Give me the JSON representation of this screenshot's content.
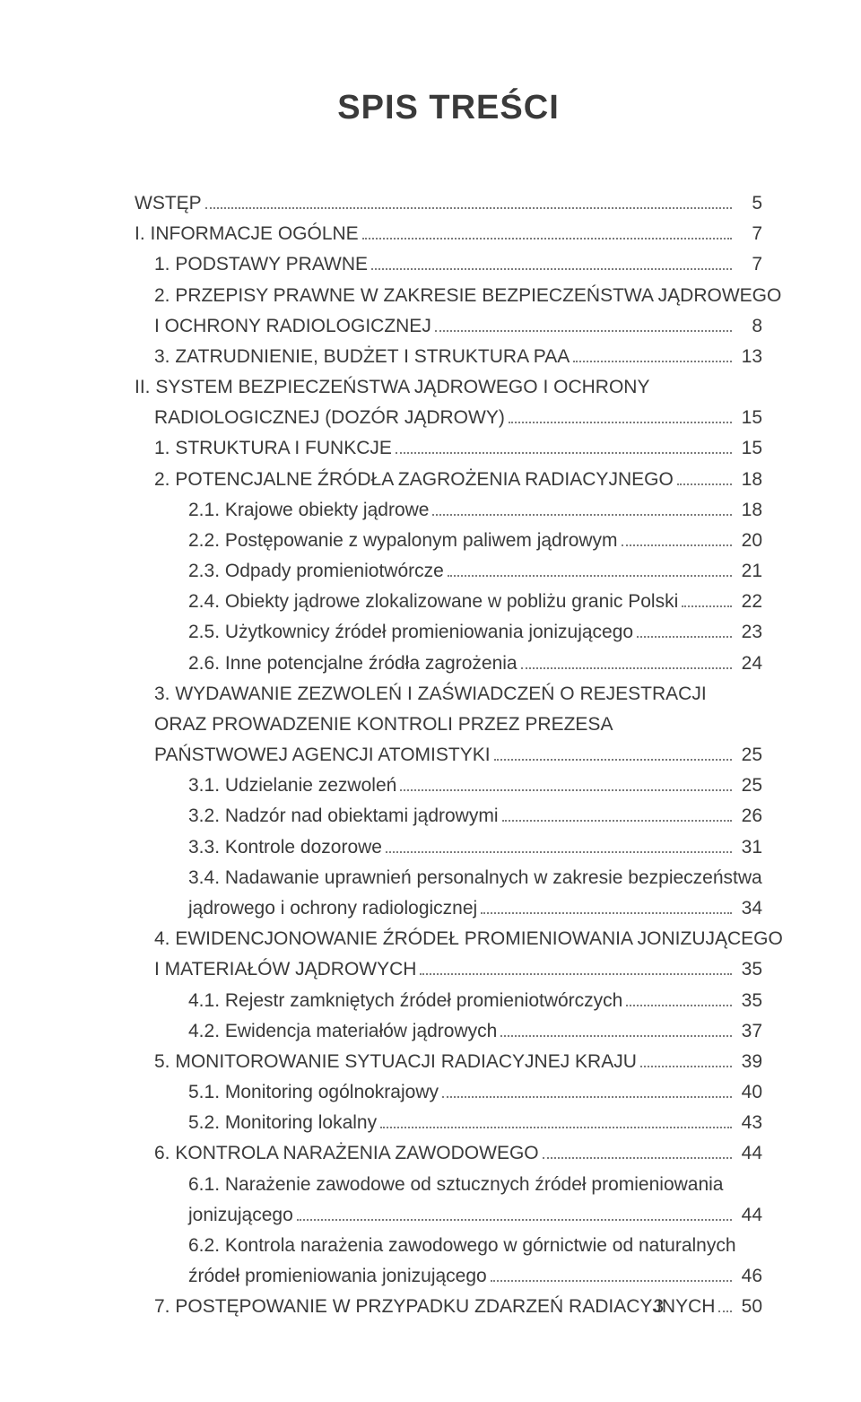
{
  "title": "SPIS TREŚCI",
  "page_number": "3",
  "colors": {
    "text": "#3a3a3a",
    "dots": "#7a7a7a",
    "background": "#ffffff"
  },
  "typography": {
    "title_fontsize_pt": 28,
    "body_fontsize_pt": 16,
    "title_weight": "bold",
    "font_family": "Arial"
  },
  "entries": [
    {
      "level": 0,
      "text": "WSTĘP",
      "page": "5"
    },
    {
      "level": 0,
      "text": "I. INFORMACJE OGÓLNE",
      "page": "7"
    },
    {
      "level": 1,
      "text": "1. PODSTAWY PRAWNE",
      "page": "7"
    },
    {
      "level": 1,
      "text": "2. PRZEPISY PRAWNE W ZAKRESIE BEZPIECZEŃSTWA JĄDROWEGO",
      "cont": "I OCHRONY RADIOLOGICZNEJ",
      "page": "8",
      "contIndent": "cont1"
    },
    {
      "level": 1,
      "text": "3. ZATRUDNIENIE, BUDŻET I STRUKTURA PAA",
      "page": "13"
    },
    {
      "level": 0,
      "text": "II. SYSTEM BEZPIECZEŃSTWA JĄDROWEGO I OCHRONY",
      "cont": "RADIOLOGICZNEJ (DOZÓR JĄDROWY)",
      "page": "15",
      "contIndent": "cont1"
    },
    {
      "level": 1,
      "text": "1. STRUKTURA I FUNKCJE",
      "page": "15"
    },
    {
      "level": 1,
      "text": "2. POTENCJALNE ŹRÓDŁA ZAGROŻENIA RADIACYJNEGO",
      "page": "18"
    },
    {
      "level": 2,
      "text": "2.1. Krajowe obiekty jądrowe",
      "page": "18"
    },
    {
      "level": 2,
      "text": "2.2. Postępowanie z wypalonym paliwem jądrowym",
      "page": "20"
    },
    {
      "level": 2,
      "text": "2.3. Odpady promieniotwórcze",
      "page": "21"
    },
    {
      "level": 2,
      "text": "2.4. Obiekty jądrowe zlokalizowane w pobliżu granic Polski",
      "page": "22"
    },
    {
      "level": 2,
      "text": "2.5. Użytkownicy źródeł promieniowania jonizującego",
      "page": "23"
    },
    {
      "level": 2,
      "text": "2.6. Inne potencjalne źródła zagrożenia",
      "page": "24"
    },
    {
      "level": 1,
      "text": "3. WYDAWANIE ZEZWOLEŃ I ZAŚWIADCZEŃ O REJESTRACJI",
      "cont": "ORAZ PROWADZENIE KONTROLI PRZEZ PREZESA",
      "cont2": "PAŃSTWOWEJ AGENCJI ATOMISTYKI",
      "page": "25",
      "contIndent": "cont1"
    },
    {
      "level": 2,
      "text": "3.1. Udzielanie zezwoleń",
      "page": "25"
    },
    {
      "level": 2,
      "text": "3.2. Nadzór nad obiektami jądrowymi",
      "page": "26"
    },
    {
      "level": 2,
      "text": "3.3. Kontrole dozorowe",
      "page": "31"
    },
    {
      "level": 2,
      "text": "3.4. Nadawanie uprawnień personalnych w zakresie bezpieczeństwa",
      "cont": "jądrowego i ochrony radiologicznej",
      "page": "34",
      "contIndent": "cont"
    },
    {
      "level": 1,
      "text": "4. EWIDENCJONOWANIE ŹRÓDEŁ PROMIENIOWANIA JONIZUJĄCEGO",
      "cont": "I MATERIAŁÓW JĄDROWYCH",
      "page": "35",
      "contIndent": "cont1"
    },
    {
      "level": 2,
      "text": "4.1. Rejestr zamkniętych źródeł promieniotwórczych",
      "page": "35"
    },
    {
      "level": 2,
      "text": "4.2. Ewidencja materiałów jądrowych",
      "page": "37"
    },
    {
      "level": 1,
      "text": "5. MONITOROWANIE SYTUACJI RADIACYJNEJ KRAJU",
      "page": "39"
    },
    {
      "level": 2,
      "text": "5.1. Monitoring ogólnokrajowy",
      "page": "40"
    },
    {
      "level": 2,
      "text": "5.2. Monitoring lokalny",
      "page": "43"
    },
    {
      "level": 1,
      "text": "6. KONTROLA NARAŻENIA ZAWODOWEGO",
      "page": "44"
    },
    {
      "level": 2,
      "text": "6.1. Narażenie zawodowe od sztucznych źródeł promieniowania",
      "cont": "jonizującego",
      "page": "44",
      "contIndent": "cont"
    },
    {
      "level": 2,
      "text": "6.2. Kontrola narażenia zawodowego w górnictwie od naturalnych",
      "cont": "źródeł promieniowania jonizującego",
      "page": "46",
      "contIndent": "cont"
    },
    {
      "level": 1,
      "text": "7. POSTĘPOWANIE W PRZYPADKU ZDARZEŃ RADIACYJNYCH",
      "page": "50"
    }
  ]
}
